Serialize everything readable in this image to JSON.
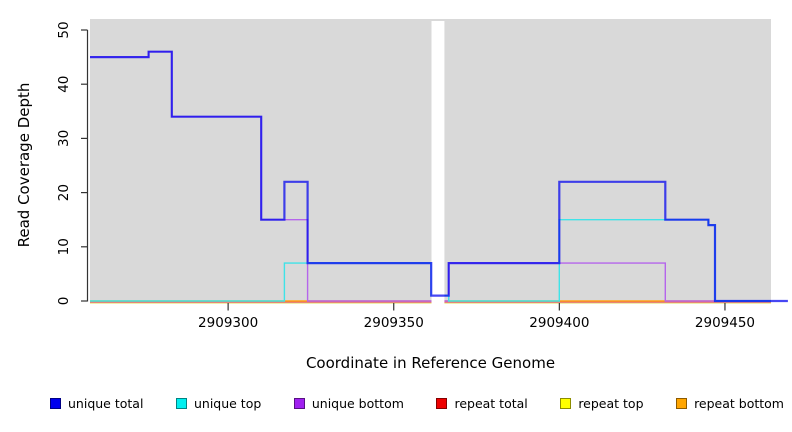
{
  "chart_data": {
    "type": "line",
    "subtype": "step",
    "title": "",
    "xlabel": "Coordinate in Reference Genome",
    "ylabel": "Read Coverage Depth",
    "xlim": [
      2909258.3,
      2909463.9
    ],
    "ylim": [
      0,
      50
    ],
    "x_ticks": [
      2909300,
      2909350,
      2909400,
      2909450
    ],
    "y_ticks": [
      0,
      10,
      20,
      30,
      40,
      50
    ],
    "grid": false,
    "plot_bg": "#D9D9D9",
    "gap": {
      "x_start": 2909361.4,
      "x_end": 2909365.3,
      "fill": "#FFFFFF"
    },
    "legend_position": "bottom",
    "legend": [
      {
        "label": "unique total",
        "color": "#0000EE"
      },
      {
        "label": "unique top",
        "color": "#00EFEF"
      },
      {
        "label": "unique bottom",
        "color": "#A020F0"
      },
      {
        "label": "repeat total",
        "color": "#EE0000"
      },
      {
        "label": "repeat top",
        "color": "#FFFF00"
      },
      {
        "label": "repeat bottom",
        "color": "#FFA500"
      }
    ],
    "series": [
      {
        "name": "unique total",
        "line_color": "#0000EE",
        "opacity": 0.72,
        "width": 2.2,
        "z": 6,
        "points": [
          [
            2909258.3,
            45
          ],
          [
            2909276,
            46
          ],
          [
            2909283,
            34
          ],
          [
            2909310,
            15
          ],
          [
            2909317,
            22
          ],
          [
            2909324,
            7
          ],
          [
            2909361.3,
            1
          ],
          [
            2909366.6,
            7
          ],
          [
            2909400,
            22
          ],
          [
            2909432,
            15
          ],
          [
            2909445,
            14
          ],
          [
            2909447,
            0
          ]
        ],
        "end": 2909469
      },
      {
        "name": "unique top",
        "line_color": "#3FE3E8",
        "opacity": 1,
        "width": 1.4,
        "z": 5,
        "points": [
          [
            2909258.3,
            0
          ],
          [
            2909317,
            7
          ],
          [
            2909361.3,
            1
          ],
          [
            2909366.6,
            0
          ],
          [
            2909400,
            15
          ],
          [
            2909445,
            14
          ],
          [
            2909447,
            0
          ]
        ],
        "end": 2909463.9
      },
      {
        "name": "unique bottom",
        "line_color": "#B565EC",
        "opacity": 1,
        "width": 1.4,
        "z": 4,
        "points": [
          [
            2909258.3,
            45
          ],
          [
            2909276,
            46
          ],
          [
            2909283,
            34
          ],
          [
            2909310,
            15
          ],
          [
            2909324,
            0
          ],
          [
            2909366.6,
            7
          ],
          [
            2909432,
            0
          ]
        ],
        "end": 2909463.9
      },
      {
        "name": "repeat total",
        "line_color": "#E4476B",
        "opacity": 1,
        "width": 1.2,
        "z": 2,
        "points": [
          [
            2909258.3,
            0
          ]
        ],
        "end": 2909463.9
      },
      {
        "name": "repeat top",
        "line_color": "#E9E98F",
        "opacity": 1,
        "width": 1.5,
        "z": 1,
        "points": [
          [
            2909258.3,
            0
          ]
        ],
        "end": 2909463.9
      },
      {
        "name": "repeat bottom",
        "line_color": "#FFA319",
        "opacity": 1,
        "width": 1.4,
        "z": 3,
        "points": [
          [
            2909258.3,
            0
          ]
        ],
        "end": 2909463.9
      }
    ]
  }
}
